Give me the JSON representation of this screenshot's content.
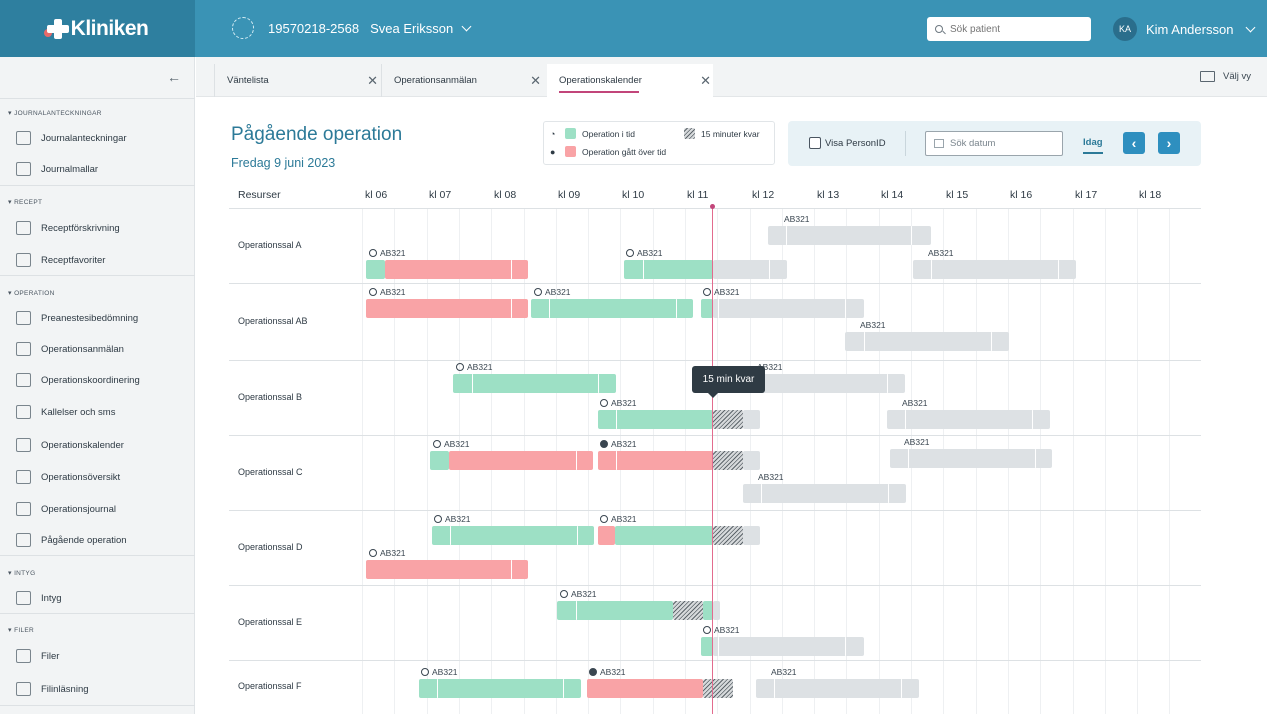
{
  "app": {
    "logo": "Kliniken"
  },
  "patient": {
    "id": "19570218-2568",
    "name": "Svea Eriksson"
  },
  "search": {
    "placeholder": "Sök patient"
  },
  "user": {
    "initials": "KA",
    "name": "Kim Andersson"
  },
  "sidebar": {
    "sections": [
      {
        "title": "JOURNALANTECKNINGAR",
        "items": [
          {
            "label": "Journalanteckningar",
            "icon": "journal-plus-icon"
          },
          {
            "label": "Journalmallar",
            "icon": "folder-plus-icon"
          }
        ]
      },
      {
        "title": "RECEPT",
        "items": [
          {
            "label": "Receptförskrivning",
            "icon": "prescription-icon"
          },
          {
            "label": "Receptfavoriter",
            "icon": "prescription-favorite-icon"
          }
        ]
      },
      {
        "title": "OPERATION",
        "items": [
          {
            "label": "Preanestesibedömning",
            "icon": "edit-icon"
          },
          {
            "label": "Operationsanmälan",
            "icon": "clipboard-icon"
          },
          {
            "label": "Operationskoordinering",
            "icon": "brain-icon"
          },
          {
            "label": "Kallelser och sms",
            "icon": "send-icon"
          },
          {
            "label": "Operationskalender",
            "icon": "calendar-icon"
          },
          {
            "label": "Operationsöversikt",
            "icon": "overview-icon"
          },
          {
            "label": "Operationsjournal",
            "icon": "operating-table-icon"
          },
          {
            "label": "Pågående operation",
            "icon": "ongoing-operation-icon"
          }
        ]
      },
      {
        "title": "INTYG",
        "items": [
          {
            "label": "Intyg",
            "icon": "certificate-icon"
          }
        ]
      },
      {
        "title": "FILER",
        "items": [
          {
            "label": "Filer",
            "icon": "file-icon"
          },
          {
            "label": "Filinläsning",
            "icon": "upload-icon"
          }
        ]
      }
    ]
  },
  "tabs": [
    {
      "label": "Väntelista"
    },
    {
      "label": "Operationsanmälan"
    },
    {
      "label": "Operationskalender"
    }
  ],
  "view_toggle": "Välj vy",
  "page": {
    "title": "Pågående operation",
    "date": "Fredag 9 juni 2023"
  },
  "legend": {
    "on_time": "Operation i tid",
    "over_time": "Operation gått över tid",
    "fifteen": "15 minuter kvar"
  },
  "filters": {
    "show_person_id": "Visa PersonID",
    "date_placeholder": "Sök datum",
    "today": "Idag"
  },
  "schedule": {
    "resources_header": "Resurser",
    "hours": [
      "kl 06",
      "kl 07",
      "kl 08",
      "kl 09",
      "kl 10",
      "kl 11",
      "kl 12",
      "kl 13",
      "kl 14",
      "kl 15",
      "kl 16",
      "kl 17",
      "kl 18"
    ],
    "rooms": [
      "Operationssal A",
      "Operationssal AB",
      "Operationssal B",
      "Operationssal C",
      "Operationssal D",
      "Operationssal E",
      "Operationssal F"
    ],
    "booking_label": "AB321",
    "tooltip": "15 min kvar"
  },
  "colors": {
    "on_time": "#9de0c5",
    "over_time": "#f9a3a6",
    "planned": "#dde1e4",
    "now_line": "#e26b8e",
    "brand": "#3a93b5"
  }
}
